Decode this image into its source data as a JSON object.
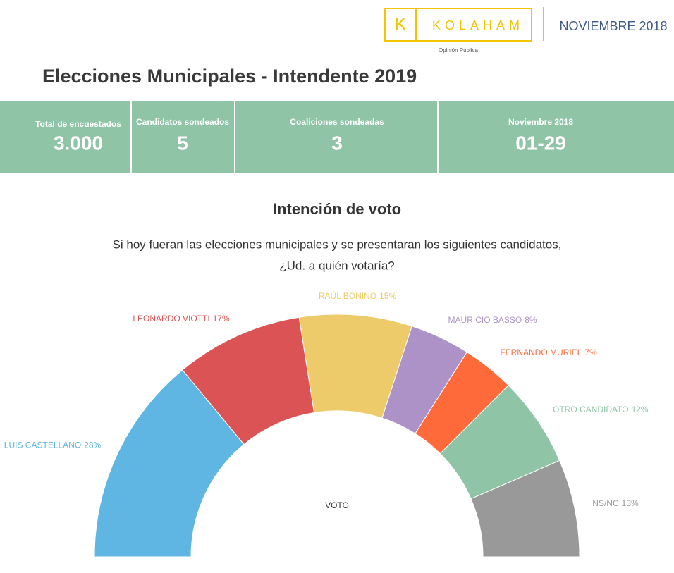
{
  "header": {
    "logo": "KOLAHAM",
    "logo_letter": "K",
    "logo_tagline": "Opinión Pública",
    "date": "NOVIEMBRE 2018",
    "title": "Elecciones Municipales - Intendente 2019"
  },
  "stats": [
    {
      "label": "Total de encuestados",
      "value": "3.000"
    },
    {
      "label": "Candidatos sondeados",
      "value": "5"
    },
    {
      "label": "Coaliciones sondeadas",
      "value": "3"
    },
    {
      "label": "Noviembre 2018",
      "value": "01-29"
    }
  ],
  "chart_data": {
    "type": "semi-donut",
    "title": "Intención de voto",
    "subtitle": [
      "Si hoy fueran las elecciones municipales y se presentaran los siguientes candidatos,",
      "¿Ud. a quién votaría?"
    ],
    "center_label": "VOTO",
    "categories": [
      "LUIS CASTELLANO",
      "LEONARDO VIOTTI",
      "RAÚL BONINO",
      "MAURICIO BASSO",
      "FERNANDO MURIEL",
      "OTRO CANDIDATO",
      "NS/NC"
    ],
    "values": [
      28,
      17,
      15,
      8,
      7,
      12,
      13
    ],
    "value_labels": [
      "28%",
      "17%",
      "15%",
      "8%",
      "7%",
      "12%",
      "13%"
    ],
    "colors": [
      "#5fb6e3",
      "#dc5355",
      "#eecb6a",
      "#ad92c8",
      "#fe6a3a",
      "#8fc4a6",
      "#999999"
    ]
  }
}
